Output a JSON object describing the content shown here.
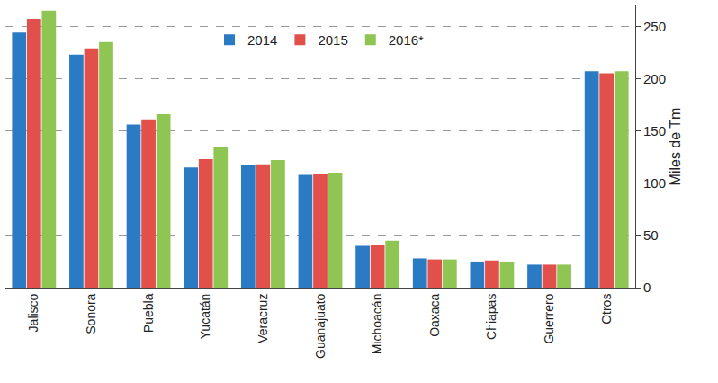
{
  "chart_data": {
    "type": "bar",
    "categories": [
      "Jalisco",
      "Sonora",
      "Puebla",
      "Yucatán",
      "Veracruz",
      "Guanajuato",
      "Michoacán",
      "Oaxaca",
      "Chiapas",
      "Guerrero",
      "Otros"
    ],
    "series": [
      {
        "name": "2014",
        "color": "#2b7bc4",
        "values": [
          244,
          223,
          156,
          115,
          117,
          108,
          40,
          28,
          25,
          22,
          207
        ]
      },
      {
        "name": "2015",
        "color": "#e2504b",
        "values": [
          257,
          229,
          161,
          123,
          118,
          109,
          41,
          27,
          26,
          22,
          205
        ]
      },
      {
        "name": "2016*",
        "color": "#8ec553",
        "values": [
          265,
          235,
          166,
          135,
          122,
          110,
          45,
          27,
          25,
          22,
          207
        ]
      }
    ],
    "y_label": "Miles de Tm",
    "ylim": [
      0,
      270
    ],
    "yticks": [
      0,
      50,
      100,
      150,
      200,
      250
    ],
    "grid": true,
    "legend": "top"
  }
}
